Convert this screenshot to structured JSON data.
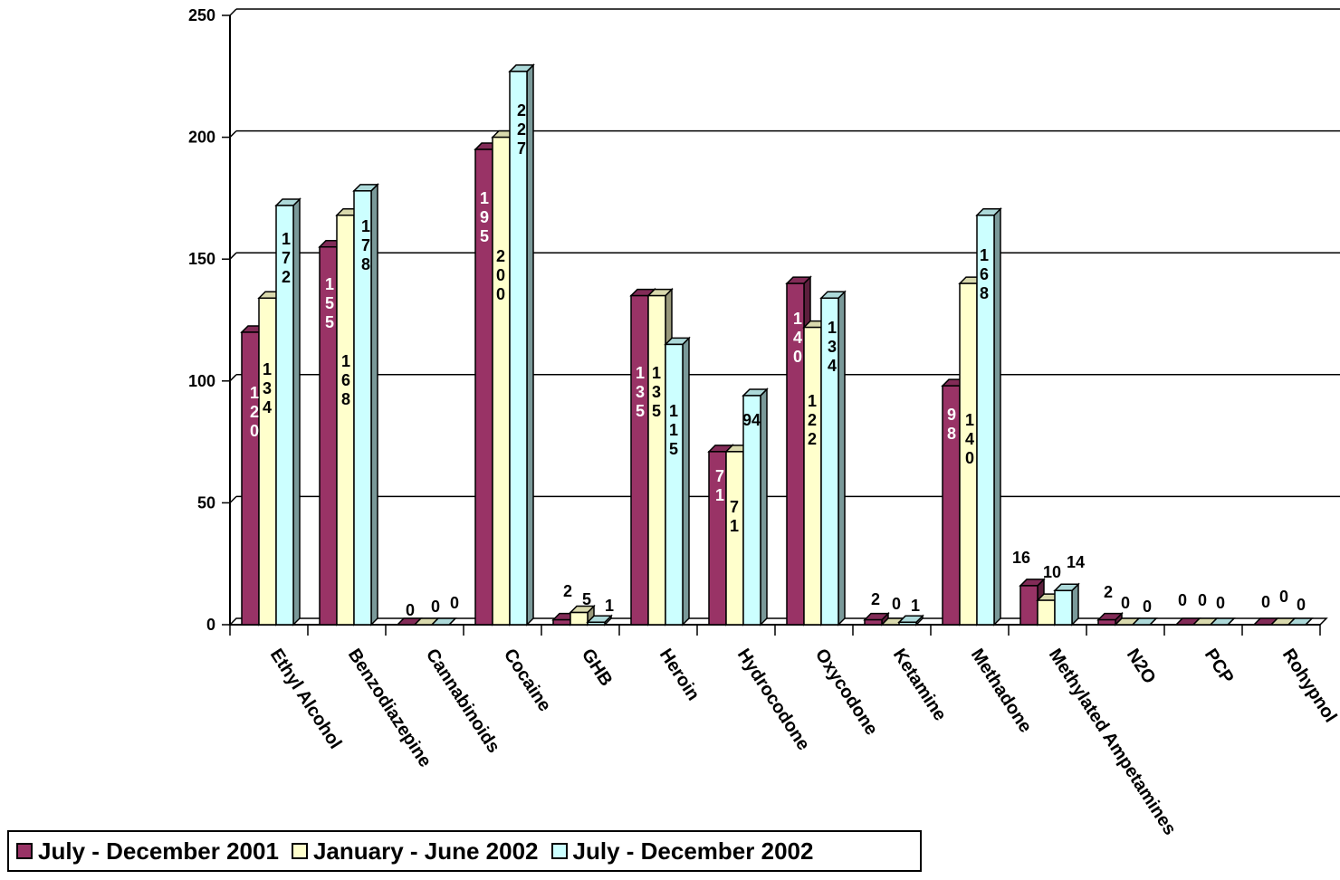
{
  "chart_data": {
    "type": "bar",
    "title": "",
    "xlabel": "",
    "ylabel": "",
    "ylim": [
      0,
      250
    ],
    "yticks": [
      0,
      50,
      100,
      150,
      200,
      250
    ],
    "grid": true,
    "legend_position": "bottom-left",
    "categories": [
      "Ethyl Alcohol",
      "Benzodiazepine",
      "Cannabinoids",
      "Cocaine",
      "GHB",
      "Heroin",
      "Hydrocodone",
      "Oxycodone",
      "Ketamine",
      "Methadone",
      "Methylated Ampetamines",
      "N2O",
      "PCP",
      "Rohypnol"
    ],
    "series": [
      {
        "name": "July - December 2001",
        "color": "#993366",
        "values": [
          120,
          155,
          0,
          195,
          2,
          135,
          71,
          140,
          2,
          98,
          16,
          2,
          0,
          0
        ]
      },
      {
        "name": "January - June 2002",
        "color": "#FFFFCC",
        "values": [
          134,
          168,
          0,
          200,
          5,
          135,
          71,
          122,
          0,
          140,
          10,
          0,
          0,
          0
        ]
      },
      {
        "name": "July - December 2002",
        "color": "#CCFFFF",
        "values": [
          172,
          178,
          0,
          227,
          1,
          115,
          94,
          134,
          1,
          168,
          14,
          0,
          0,
          0
        ]
      }
    ]
  }
}
